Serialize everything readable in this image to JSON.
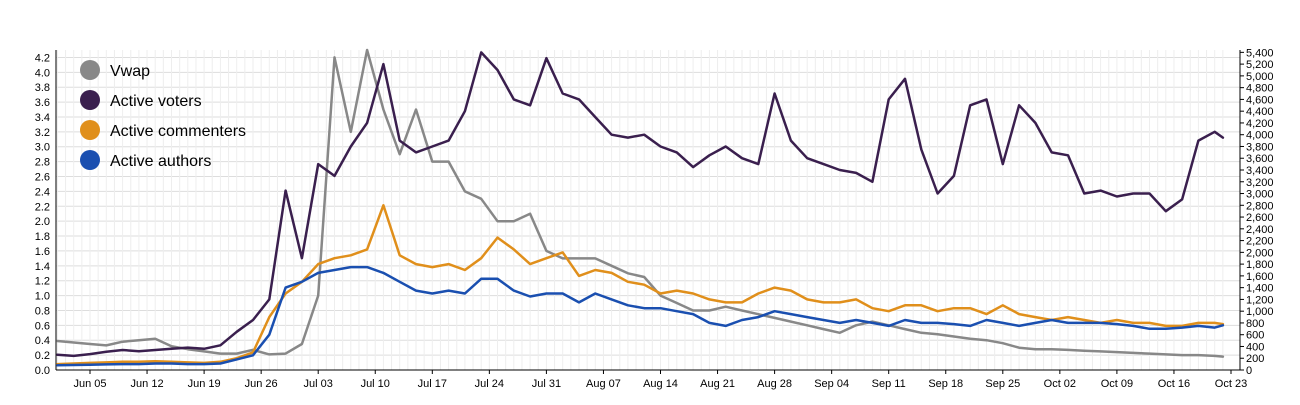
{
  "chart_data": {
    "type": "line",
    "title": "",
    "x_ticks": [
      "Jun 05",
      "Jun 12",
      "Jun 19",
      "Jun 26",
      "Jul 03",
      "Jul 10",
      "Jul 17",
      "Jul 24",
      "Jul 31",
      "Aug 07",
      "Aug 14",
      "Aug 21",
      "Aug 28",
      "Sep 04",
      "Sep 11",
      "Sep 18",
      "Sep 25",
      "Oct 02",
      "Oct 09",
      "Oct 16",
      "Oct 23"
    ],
    "y_left": {
      "min": 0,
      "max": 4.3,
      "ticks": [
        "0.0",
        "0.2",
        "0.4",
        "0.6",
        "0.8",
        "1.0",
        "1.2",
        "1.4",
        "1.6",
        "1.8",
        "2.0",
        "2.2",
        "2.4",
        "2.6",
        "2.8",
        "3.0",
        "3.2",
        "3.4",
        "3.6",
        "3.8",
        "4.0",
        "4.2"
      ]
    },
    "y_right": {
      "min": 0,
      "max": 5440,
      "ticks": [
        "0",
        "200",
        "400",
        "600",
        "800",
        "1,000",
        "1,200",
        "1,400",
        "1,600",
        "1,800",
        "2,000",
        "2,200",
        "2,400",
        "2,600",
        "2,800",
        "3,000",
        "3,200",
        "3,400",
        "3,600",
        "3,800",
        "4,000",
        "4,200",
        "4,400",
        "4,600",
        "4,800",
        "5,000",
        "5,200",
        "5,400"
      ]
    },
    "x_days": {
      "first": -4,
      "last": 139,
      "note_tick_day0": "Jun 05"
    },
    "grid": true,
    "legend_position": "top-left",
    "series": [
      {
        "name": "Vwap",
        "axis": "left",
        "color": "#888888",
        "x": [
          -4,
          -2,
          0,
          2,
          4,
          6,
          8,
          10,
          12,
          14,
          16,
          18,
          20,
          22,
          24,
          26,
          28,
          30,
          32,
          34,
          36,
          38,
          40,
          42,
          44,
          46,
          48,
          50,
          52,
          54,
          56,
          58,
          60,
          62,
          64,
          66,
          68,
          70,
          72,
          74,
          76,
          78,
          80,
          82,
          84,
          86,
          88,
          90,
          92,
          94,
          96,
          98,
          100,
          102,
          104,
          106,
          108,
          110,
          112,
          114,
          116,
          118,
          120,
          122,
          124,
          126,
          128,
          130,
          132,
          134,
          136,
          138,
          139
        ],
        "values": [
          0.39,
          0.37,
          0.35,
          0.33,
          0.38,
          0.4,
          0.42,
          0.32,
          0.28,
          0.25,
          0.22,
          0.22,
          0.27,
          0.21,
          0.22,
          0.35,
          1.0,
          4.2,
          3.2,
          4.3,
          3.5,
          2.9,
          3.5,
          2.8,
          2.8,
          2.4,
          2.3,
          2.0,
          2.0,
          2.1,
          1.6,
          1.5,
          1.5,
          1.5,
          1.4,
          1.3,
          1.25,
          1.0,
          0.9,
          0.8,
          0.8,
          0.85,
          0.8,
          0.75,
          0.7,
          0.65,
          0.6,
          0.55,
          0.5,
          0.6,
          0.65,
          0.6,
          0.55,
          0.5,
          0.48,
          0.45,
          0.42,
          0.4,
          0.36,
          0.3,
          0.28,
          0.28,
          0.27,
          0.26,
          0.25,
          0.24,
          0.23,
          0.22,
          0.21,
          0.2,
          0.2,
          0.19,
          0.18
        ]
      },
      {
        "name": "Active voters",
        "axis": "right",
        "color": "#3a1f4e",
        "x": [
          -4,
          -2,
          0,
          2,
          4,
          6,
          8,
          10,
          12,
          14,
          16,
          18,
          20,
          22,
          24,
          26,
          28,
          30,
          32,
          34,
          36,
          38,
          40,
          42,
          44,
          46,
          48,
          50,
          52,
          54,
          56,
          58,
          60,
          62,
          64,
          66,
          68,
          70,
          72,
          74,
          76,
          78,
          80,
          82,
          84,
          86,
          88,
          90,
          92,
          94,
          96,
          98,
          100,
          102,
          104,
          106,
          108,
          110,
          112,
          114,
          116,
          118,
          120,
          122,
          124,
          126,
          128,
          130,
          132,
          134,
          136,
          138,
          139
        ],
        "values": [
          260,
          240,
          270,
          310,
          340,
          320,
          340,
          360,
          380,
          360,
          420,
          650,
          850,
          1200,
          3050,
          1900,
          3500,
          3300,
          3800,
          4200,
          5200,
          3900,
          3700,
          3800,
          3900,
          4400,
          5400,
          5100,
          4600,
          4500,
          5300,
          4700,
          4600,
          4300,
          4000,
          3950,
          4000,
          3800,
          3700,
          3450,
          3650,
          3800,
          3600,
          3500,
          4700,
          3900,
          3600,
          3500,
          3400,
          3350,
          3200,
          4600,
          4950,
          3750,
          3000,
          3300,
          4500,
          4600,
          3500,
          4500,
          4200,
          3700,
          3650,
          3000,
          3050,
          2950,
          3000,
          3000,
          2700,
          2900,
          3900,
          4050,
          3950
        ]
      },
      {
        "name": "Active commenters",
        "axis": "right",
        "color": "#e08f1b",
        "x": [
          -4,
          -2,
          0,
          2,
          4,
          6,
          8,
          10,
          12,
          14,
          16,
          18,
          20,
          22,
          24,
          26,
          28,
          30,
          32,
          34,
          36,
          38,
          40,
          42,
          44,
          46,
          48,
          50,
          52,
          54,
          56,
          58,
          60,
          62,
          64,
          66,
          68,
          70,
          72,
          74,
          76,
          78,
          80,
          82,
          84,
          86,
          88,
          90,
          92,
          94,
          96,
          98,
          100,
          102,
          104,
          106,
          108,
          110,
          112,
          114,
          116,
          118,
          120,
          122,
          124,
          126,
          128,
          130,
          132,
          134,
          136,
          138,
          139
        ],
        "values": [
          100,
          110,
          120,
          130,
          140,
          140,
          150,
          140,
          130,
          120,
          140,
          200,
          300,
          900,
          1300,
          1500,
          1800,
          1900,
          1950,
          2050,
          2800,
          1950,
          1800,
          1750,
          1800,
          1700,
          1900,
          2250,
          2050,
          1800,
          1900,
          2000,
          1600,
          1700,
          1650,
          1500,
          1450,
          1300,
          1350,
          1300,
          1200,
          1150,
          1150,
          1300,
          1400,
          1350,
          1200,
          1150,
          1150,
          1200,
          1050,
          1000,
          1100,
          1100,
          1000,
          1050,
          1050,
          950,
          1100,
          950,
          900,
          850,
          900,
          850,
          800,
          850,
          800,
          800,
          750,
          750,
          800,
          800,
          780
        ]
      },
      {
        "name": "Active authors",
        "axis": "right",
        "color": "#1a4fb0",
        "x": [
          -4,
          -2,
          0,
          2,
          4,
          6,
          8,
          10,
          12,
          14,
          16,
          18,
          20,
          22,
          24,
          26,
          28,
          30,
          32,
          34,
          36,
          38,
          40,
          42,
          44,
          46,
          48,
          50,
          52,
          54,
          56,
          58,
          60,
          62,
          64,
          66,
          68,
          70,
          72,
          74,
          76,
          78,
          80,
          82,
          84,
          86,
          88,
          90,
          92,
          94,
          96,
          98,
          100,
          102,
          104,
          106,
          108,
          110,
          112,
          114,
          116,
          118,
          120,
          122,
          124,
          126,
          128,
          130,
          132,
          134,
          136,
          138,
          139
        ],
        "values": [
          80,
          85,
          90,
          95,
          100,
          100,
          110,
          110,
          100,
          100,
          110,
          180,
          250,
          600,
          1400,
          1500,
          1650,
          1700,
          1750,
          1750,
          1650,
          1500,
          1350,
          1300,
          1350,
          1300,
          1550,
          1550,
          1350,
          1250,
          1300,
          1300,
          1150,
          1300,
          1200,
          1100,
          1050,
          1050,
          1000,
          950,
          800,
          750,
          850,
          900,
          1000,
          950,
          900,
          850,
          800,
          850,
          800,
          750,
          850,
          800,
          800,
          780,
          750,
          850,
          800,
          750,
          800,
          850,
          800,
          800,
          800,
          780,
          750,
          700,
          700,
          720,
          750,
          720,
          760
        ]
      }
    ]
  }
}
